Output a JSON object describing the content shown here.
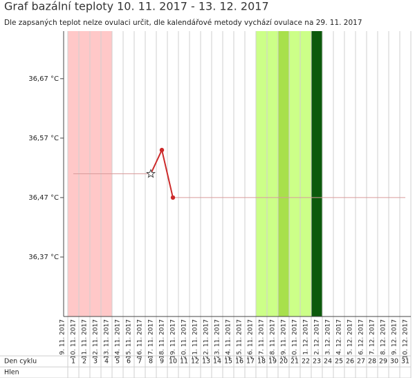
{
  "chart_data": {
    "type": "line",
    "title": "Graf bazální teploty 10. 11. 2017 - 13. 12. 2017",
    "subtitle": "Dle zapsaných teplot nelze ovulaci určit, dle kalendářové metody vychází ovulace na 29. 11. 2017",
    "categories": [
      "9. 11. 2017",
      "10. 11. 2017",
      "11. 11. 2017",
      "12. 11. 2017",
      "13. 11. 2017",
      "14. 11. 2017",
      "15. 11. 2017",
      "16. 11. 2017",
      "17. 11. 2017",
      "18. 11. 2017",
      "19. 11. 2017",
      "20. 11. 2017",
      "21. 11. 2017",
      "22. 11. 2017",
      "23. 11. 2017",
      "24. 11. 2017",
      "25. 11. 2017",
      "26. 11. 2017",
      "27. 11. 2017",
      "28. 11. 2017",
      "29. 11. 2017",
      "30. 11. 2017",
      "1. 12. 2017",
      "2. 12. 2017",
      "3. 12. 2017",
      "4. 12. 2017",
      "5. 12. 2017",
      "6. 12. 2017",
      "7. 12. 2017",
      "8. 12. 2017",
      "9. 12. 2017",
      "10. 12. 2017"
    ],
    "ylim": [
      36.27,
      36.75
    ],
    "yticks": [
      {
        "value": 36.37,
        "label": "36,37 °C"
      },
      {
        "value": 36.47,
        "label": "36,47 °C"
      },
      {
        "value": 36.57,
        "label": "36,57 °C"
      },
      {
        "value": 36.67,
        "label": "36,67 °C"
      }
    ],
    "series": [
      {
        "color": "#d99a9a",
        "width": 1,
        "values": [
          null,
          36.51,
          36.51,
          36.51,
          36.51,
          36.51,
          36.51,
          36.51,
          36.51,
          null,
          36.47,
          36.47,
          36.47,
          36.47,
          36.47,
          36.47,
          36.47,
          36.47,
          36.47,
          36.47,
          36.47,
          36.47,
          36.47,
          36.47,
          36.47,
          36.47,
          36.47,
          36.47,
          36.47,
          36.47,
          36.47,
          36.47
        ]
      },
      {
        "color": "#cc2a2a",
        "width": 2,
        "values": [
          null,
          null,
          null,
          null,
          null,
          null,
          null,
          null,
          36.51,
          36.55,
          36.47,
          null,
          null,
          null,
          null,
          null,
          null,
          null,
          null,
          null,
          null,
          null,
          null,
          null,
          null,
          null,
          null,
          null,
          null,
          null,
          null,
          null
        ],
        "markers": [
          null,
          null,
          null,
          null,
          null,
          null,
          null,
          null,
          "star",
          "circle",
          "circle",
          null,
          null,
          null,
          null,
          null,
          null,
          null,
          null,
          null,
          null,
          null,
          null,
          null,
          null,
          null,
          null,
          null,
          null,
          null,
          null,
          null
        ]
      }
    ],
    "bands": [
      {
        "from": 1,
        "to": 4,
        "color": "#ffc8c8"
      },
      {
        "from": 18,
        "to": 22,
        "color": "#ccff88"
      },
      {
        "from": 20,
        "to": 20,
        "color": "#a8e04c"
      },
      {
        "from": 23,
        "to": 23,
        "color": "#0c5a0c"
      }
    ],
    "table": {
      "row_labels": [
        "Den cyklu",
        "Hlen"
      ],
      "cycle_days": [
        null,
        1,
        2,
        3,
        4,
        5,
        6,
        7,
        8,
        9,
        10,
        11,
        12,
        13,
        14,
        15,
        16,
        17,
        18,
        19,
        20,
        21,
        22,
        23,
        24,
        25,
        26,
        27,
        28,
        29,
        30,
        31
      ]
    }
  }
}
